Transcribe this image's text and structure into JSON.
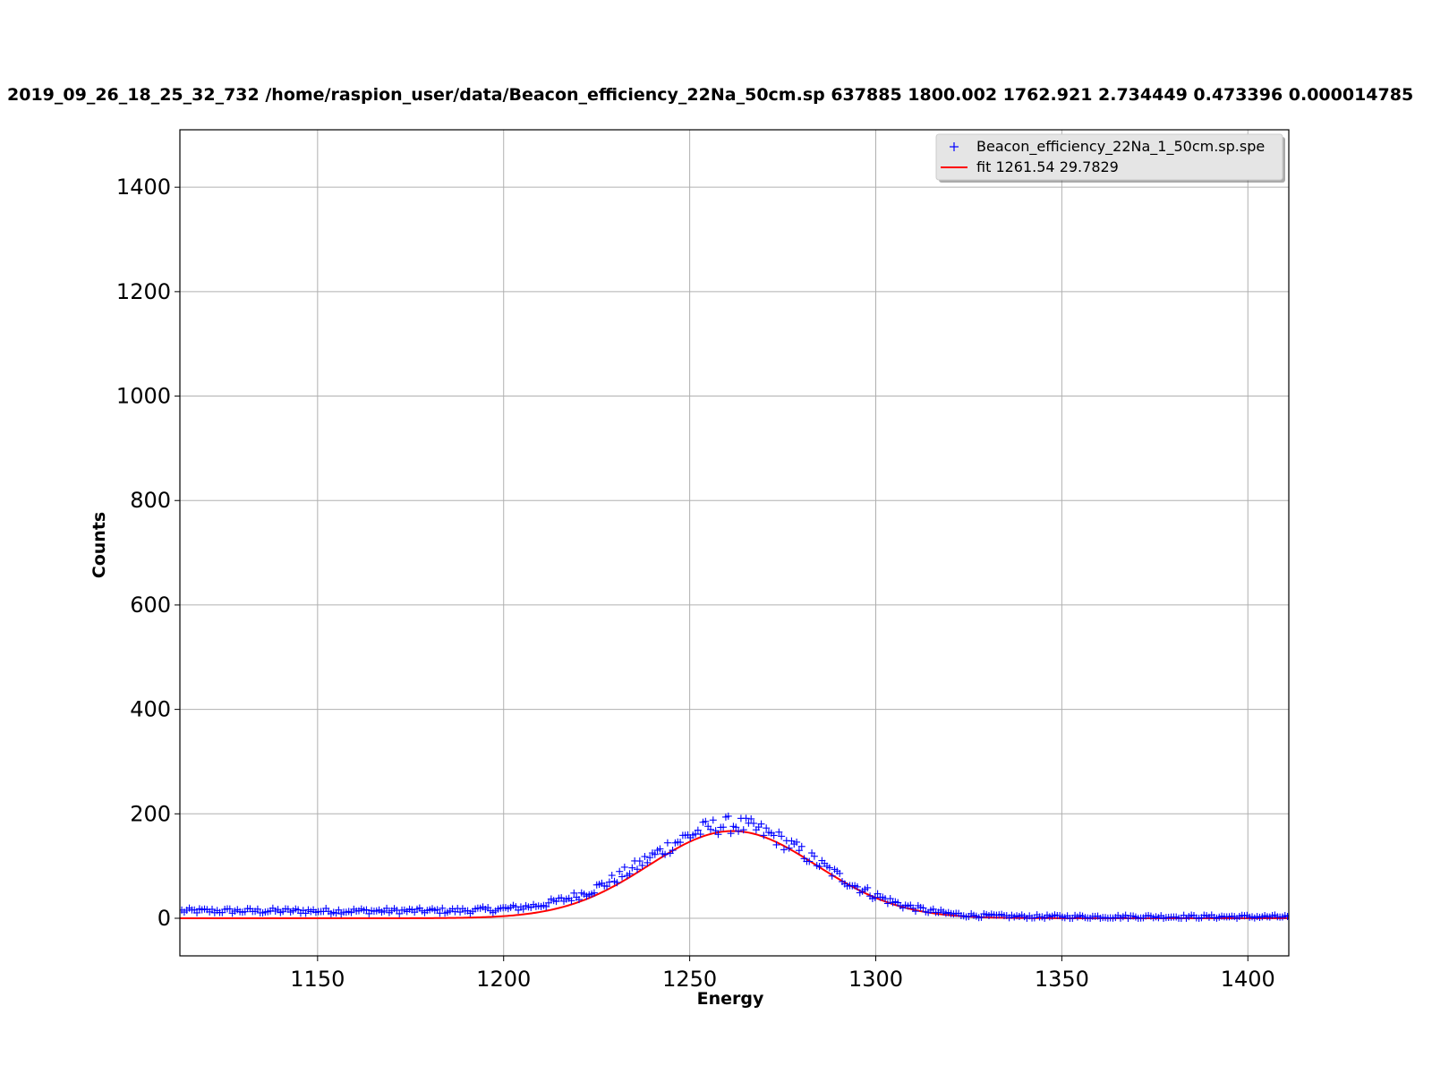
{
  "chart_data": {
    "type": "scatter",
    "title": "2019_09_26_18_25_32_732 /home/raspion_user/data/Beacon_efficiency_22Na_50cm.sp 637885 1800.002 1762.921 2.734449 0.473396  0.000014785",
    "xlabel": "Energy",
    "ylabel": "Counts",
    "xlim": [
      1113,
      1411
    ],
    "ylim": [
      -72,
      1510
    ],
    "xticks": [
      1150,
      1200,
      1250,
      1300,
      1350,
      1400
    ],
    "yticks": [
      0,
      200,
      400,
      600,
      800,
      1000,
      1200,
      1400
    ],
    "grid": true,
    "legend_position": "top-right",
    "series": [
      {
        "name": "Beacon_efficiency_22Na_1_50cm.sp.spe",
        "kind": "scatter",
        "marker": "+",
        "color": "#0000ff",
        "x_start": 1113.5,
        "x_step": 0.68,
        "background": 14,
        "amplitude": 165,
        "center": 1261.5,
        "sigma": 22.5
      },
      {
        "name": "fit 1261.54 29.7829",
        "kind": "line",
        "color": "#ff0000",
        "center": 1261.54,
        "width": 29.7829,
        "amplitude": 167
      }
    ]
  }
}
